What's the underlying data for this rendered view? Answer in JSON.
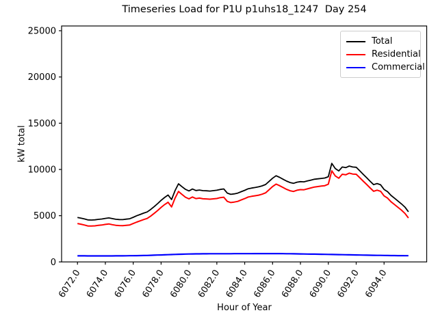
{
  "window": {
    "title": "Timeseries Load for P1U p1uhs18_1247  Day 254"
  },
  "chart_data": {
    "type": "line",
    "title": "Timeseries Load for P1U p1uhs18_1247  Day 254",
    "xlabel": "Hour of Year",
    "ylabel": "kW total",
    "xlim": [
      6070.86,
      6097.06
    ],
    "ylim": [
      0,
      25515
    ],
    "grid": false,
    "legend_position": "upper right",
    "x_ticks": [
      6072,
      6074,
      6076,
      6078,
      6080,
      6082,
      6084,
      6086,
      6088,
      6090,
      6092,
      6094
    ],
    "x_tick_labels": [
      "6072.0",
      "6074.0",
      "6076.0",
      "6078.0",
      "6080.0",
      "6082.0",
      "6084.0",
      "6086.0",
      "6088.0",
      "6090.0",
      "6092.0",
      "6094.0"
    ],
    "y_ticks": [
      0,
      5000,
      10000,
      15000,
      20000,
      25000
    ],
    "y_tick_labels": [
      "0",
      "5000",
      "10000",
      "15000",
      "20000",
      "25000"
    ],
    "x_start": 6072.0,
    "x_step": 0.25,
    "n_points": 96,
    "series": [
      {
        "name": "Total",
        "color": "#000000",
        "values": [
          4810,
          4738,
          4645,
          4542,
          4530,
          4550,
          4600,
          4640,
          4710,
          4761,
          4682,
          4614,
          4585,
          4575,
          4625,
          4670,
          4825,
          4992,
          5130,
          5278,
          5405,
          5668,
          5980,
          6303,
          6655,
          6970,
          7235,
          6750,
          7715,
          8446,
          8138,
          7849,
          7680,
          7885,
          7720,
          7775,
          7710,
          7693,
          7665,
          7708,
          7750,
          7840,
          7890,
          7440,
          7310,
          7361,
          7442,
          7594,
          7745,
          7916,
          7987,
          8049,
          8120,
          8221,
          8372,
          8714,
          9055,
          9321,
          9148,
          8944,
          8740,
          8584,
          8498,
          8621,
          8685,
          8659,
          8753,
          8846,
          8940,
          8984,
          9028,
          9071,
          9215,
          10658,
          10100,
          9843,
          10265,
          10198,
          10370,
          10263,
          10235,
          9858,
          9480,
          9113,
          8725,
          8359,
          8473,
          8346,
          7840,
          7595,
          7190,
          6885,
          6580,
          6277,
          5924,
          5420
        ]
      },
      {
        "name": "Residential",
        "color": "#ff0000",
        "values": [
          4150,
          4080,
          3990,
          3890,
          3880,
          3900,
          3950,
          3990,
          4060,
          4110,
          4030,
          3960,
          3930,
          3915,
          3960,
          4000,
          4150,
          4310,
          4440,
          4580,
          4700,
          4950,
          5250,
          5560,
          5900,
          6200,
          6450,
          5950,
          6900,
          7620,
          7300,
          7000,
          6820,
          7020,
          6850,
          6900,
          6830,
          6810,
          6780,
          6820,
          6860,
          6950,
          7000,
          6550,
          6420,
          6470,
          6550,
          6700,
          6850,
          7020,
          7090,
          7150,
          7220,
          7320,
          7470,
          7810,
          8150,
          8420,
          8250,
          8050,
          7850,
          7700,
          7620,
          7750,
          7820,
          7800,
          7900,
          8000,
          8100,
          8150,
          8200,
          8250,
          8400,
          9850,
          9300,
          9050,
          9480,
          9420,
          9600,
          9500,
          9480,
          9110,
          8740,
          8380,
          8000,
          7640,
          7760,
          7640,
          7140,
          6900,
          6500,
          6200,
          5900,
          5600,
          5250,
          4750
        ]
      },
      {
        "name": "Commercial",
        "color": "#0000ff",
        "values": [
          660,
          658,
          655,
          652,
          650,
          650,
          650,
          650,
          650,
          651,
          652,
          654,
          655,
          660,
          665,
          670,
          675,
          682,
          690,
          698,
          705,
          718,
          730,
          743,
          755,
          770,
          785,
          800,
          815,
          826,
          838,
          849,
          860,
          865,
          870,
          875,
          880,
          883,
          885,
          888,
          890,
          890,
          890,
          890,
          890,
          891,
          892,
          894,
          895,
          896,
          897,
          899,
          900,
          901,
          902,
          904,
          905,
          901,
          898,
          894,
          890,
          884,
          878,
          871,
          865,
          859,
          853,
          846,
          840,
          834,
          828,
          821,
          815,
          808,
          800,
          793,
          785,
          778,
          770,
          763,
          755,
          748,
          740,
          733,
          725,
          719,
          713,
          706,
          700,
          695,
          690,
          685,
          680,
          677,
          674,
          670
        ]
      }
    ]
  }
}
